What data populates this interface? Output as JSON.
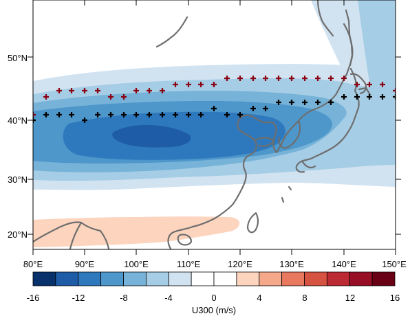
{
  "map": {
    "x_labels": [
      "80°E",
      "90°E",
      "100°E",
      "110°E",
      "120°E",
      "130°E",
      "140°E",
      "150°E"
    ],
    "y_labels": [
      "50°N",
      "40°N",
      "30°N",
      "20°N"
    ],
    "lon_range": [
      80,
      150
    ],
    "lat_range": [
      17.5,
      58.5
    ]
  },
  "colorbar": {
    "title": "U300 (m/s)",
    "tick_labels": [
      "-16",
      "-12",
      "-8",
      "-4",
      "0",
      "4",
      "8",
      "12",
      "16"
    ],
    "colors": [
      "#08306b",
      "#1f5ca8",
      "#2e79bd",
      "#4e97cb",
      "#77b3d8",
      "#a6cde6",
      "#d1e3f1",
      "#ffffff",
      "#ffffff",
      "#fdd4be",
      "#f5a98a",
      "#e8795e",
      "#d55340",
      "#bc2a33",
      "#980e24",
      "#6a0015"
    ]
  },
  "markers": {
    "black_color": "#000000",
    "red_color": "#8b0010"
  },
  "field_colors": {
    "level_1": "#d1e3f1",
    "level_2": "#a6cde6",
    "level_3": "#77b3d8",
    "level_4": "#4e97cb",
    "level_5": "#2e79bd",
    "level_6": "#1f5ca8",
    "positive_1": "#fdd4be"
  }
}
